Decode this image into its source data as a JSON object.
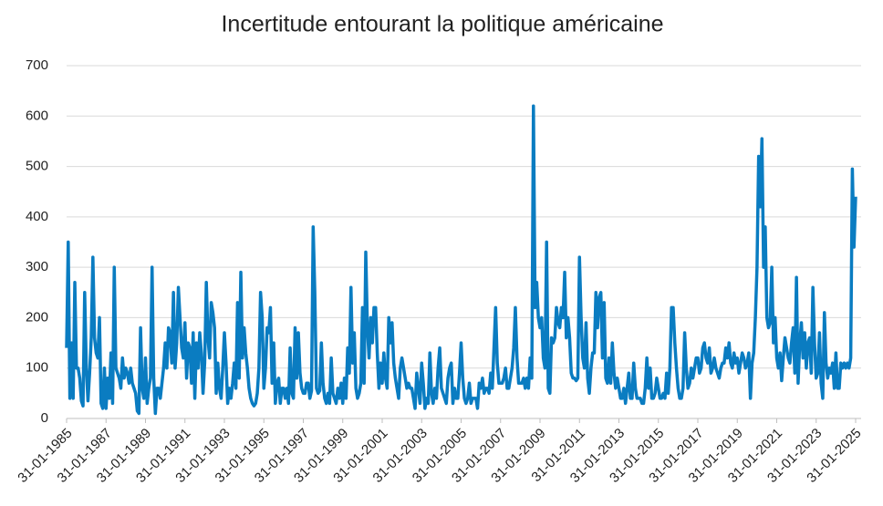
{
  "chart_data": {
    "type": "line",
    "title": "Incertitude entourant la politique américaine",
    "categories": [
      "31-01-1985",
      null,
      null,
      null,
      null,
      null,
      null,
      null,
      null,
      null,
      null,
      null,
      null,
      null,
      null,
      null,
      null,
      null,
      null,
      null,
      null,
      null,
      null,
      null,
      "31-01-1987",
      null,
      null,
      null,
      null,
      null,
      null,
      null,
      null,
      null,
      null,
      null,
      null,
      null,
      null,
      null,
      null,
      null,
      null,
      null,
      null,
      null,
      null,
      null,
      "31-01-1989",
      null,
      null,
      null,
      null,
      null,
      null,
      null,
      null,
      null,
      null,
      null,
      null,
      null,
      null,
      null,
      null,
      null,
      null,
      null,
      null,
      null,
      null,
      null,
      "31-01-1991",
      null,
      null,
      null,
      null,
      null,
      null,
      null,
      null,
      null,
      null,
      null,
      null,
      null,
      null,
      null,
      null,
      null,
      null,
      null,
      null,
      null,
      null,
      null,
      "31-01-1993",
      null,
      null,
      null,
      null,
      null,
      null,
      null,
      null,
      null,
      null,
      null,
      null,
      null,
      null,
      null,
      null,
      null,
      null,
      null,
      null,
      null,
      null,
      null,
      "31-01-1995",
      null,
      null,
      null,
      null,
      null,
      null,
      null,
      null,
      null,
      null,
      null,
      null,
      null,
      null,
      null,
      null,
      null,
      null,
      null,
      null,
      null,
      null,
      null,
      "31-01-1997",
      null,
      null,
      null,
      null,
      null,
      null,
      null,
      null,
      null,
      null,
      null,
      null,
      null,
      null,
      null,
      null,
      null,
      null,
      null,
      null,
      null,
      null,
      null,
      "31-01-1999",
      null,
      null,
      null,
      null,
      null,
      null,
      null,
      null,
      null,
      null,
      null,
      null,
      null,
      null,
      null,
      null,
      null,
      null,
      null,
      null,
      null,
      null,
      null,
      "31-01-2001",
      null,
      null,
      null,
      null,
      null,
      null,
      null,
      null,
      null,
      null,
      null,
      null,
      null,
      null,
      null,
      null,
      null,
      null,
      null,
      null,
      null,
      null,
      null,
      "31-01-2003",
      null,
      null,
      null,
      null,
      null,
      null,
      null,
      null,
      null,
      null,
      null,
      null,
      null,
      null,
      null,
      null,
      null,
      null,
      null,
      null,
      null,
      null,
      null,
      "31-01-2005",
      null,
      null,
      null,
      null,
      null,
      null,
      null,
      null,
      null,
      null,
      null,
      null,
      null,
      null,
      null,
      null,
      null,
      null,
      null,
      null,
      null,
      null,
      null,
      "31-01-2007",
      null,
      null,
      null,
      null,
      null,
      null,
      null,
      null,
      null,
      null,
      null,
      null,
      null,
      null,
      null,
      null,
      null,
      null,
      null,
      null,
      null,
      null,
      null,
      "31-01-2009",
      null,
      null,
      null,
      null,
      null,
      null,
      null,
      null,
      null,
      null,
      null,
      null,
      null,
      null,
      null,
      null,
      null,
      null,
      null,
      null,
      null,
      null,
      null,
      "31-01-2011",
      null,
      null,
      null,
      null,
      null,
      null,
      null,
      null,
      null,
      null,
      null,
      null,
      null,
      null,
      null,
      null,
      null,
      null,
      null,
      null,
      null,
      null,
      null,
      "31-01-2013",
      null,
      null,
      null,
      null,
      null,
      null,
      null,
      null,
      null,
      null,
      null,
      null,
      null,
      null,
      null,
      null,
      null,
      null,
      null,
      null,
      null,
      null,
      null,
      "31-01-2015",
      null,
      null,
      null,
      null,
      null,
      null,
      null,
      null,
      null,
      null,
      null,
      null,
      null,
      null,
      null,
      null,
      null,
      null,
      null,
      null,
      null,
      null,
      null,
      "31-01-2017",
      null,
      null,
      null,
      null,
      null,
      null,
      null,
      null,
      null,
      null,
      null,
      null,
      null,
      null,
      null,
      null,
      null,
      null,
      null,
      null,
      null,
      null,
      null,
      "31-01-2019",
      null,
      null,
      null,
      null,
      null,
      null,
      null,
      null,
      null,
      null,
      null,
      null,
      null,
      null,
      null,
      null,
      null,
      null,
      null,
      null,
      null,
      null,
      null,
      "31-01-2021",
      null,
      null,
      null,
      null,
      null,
      null,
      null,
      null,
      null,
      null,
      null,
      null,
      null,
      null,
      null,
      null,
      null,
      null,
      null,
      null,
      null,
      null,
      null,
      "31-01-2023",
      null,
      null,
      null,
      null,
      null,
      null,
      null,
      null,
      null,
      null,
      null,
      null,
      null,
      null,
      null,
      null,
      null,
      null,
      null,
      null,
      null,
      null,
      null,
      "31-01-2025"
    ],
    "series": [
      {
        "color": "#0a7cc1",
        "values": [
          140,
          350,
          40,
          150,
          40,
          270,
          100,
          100,
          80,
          35,
          25,
          250,
          100,
          35,
          90,
          160,
          320,
          160,
          130,
          120,
          200,
          30,
          20,
          100,
          20,
          80,
          40,
          130,
          30,
          300,
          100,
          90,
          80,
          60,
          120,
          80,
          100,
          90,
          70,
          100,
          70,
          60,
          50,
          15,
          10,
          180,
          60,
          40,
          120,
          30,
          60,
          80,
          300,
          80,
          10,
          60,
          60,
          40,
          70,
          100,
          150,
          100,
          180,
          170,
          110,
          250,
          100,
          150,
          260,
          200,
          140,
          120,
          190,
          80,
          150,
          140,
          70,
          170,
          40,
          150,
          100,
          170,
          130,
          50,
          110,
          270,
          160,
          120,
          230,
          210,
          180,
          50,
          110,
          60,
          40,
          100,
          170,
          110,
          30,
          60,
          40,
          70,
          110,
          60,
          230,
          80,
          290,
          120,
          180,
          130,
          100,
          60,
          40,
          30,
          25,
          30,
          50,
          100,
          250,
          200,
          60,
          100,
          180,
          170,
          220,
          70,
          150,
          30,
          70,
          80,
          30,
          60,
          60,
          40,
          60,
          30,
          140,
          50,
          40,
          180,
          80,
          170,
          90,
          60,
          50,
          50,
          70,
          70,
          40,
          55,
          380,
          250,
          60,
          50,
          55,
          150,
          70,
          40,
          30,
          50,
          30,
          120,
          50,
          40,
          30,
          60,
          40,
          70,
          30,
          80,
          40,
          140,
          90,
          260,
          110,
          170,
          60,
          40,
          50,
          70,
          220,
          70,
          330,
          180,
          120,
          200,
          150,
          220,
          220,
          130,
          60,
          110,
          70,
          130,
          80,
          60,
          200,
          150,
          190,
          110,
          80,
          60,
          40,
          100,
          120,
          100,
          80,
          60,
          70,
          60,
          60,
          40,
          20,
          90,
          60,
          30,
          110,
          70,
          20,
          40,
          30,
          130,
          50,
          30,
          60,
          40,
          100,
          140,
          60,
          50,
          40,
          30,
          80,
          100,
          110,
          30,
          60,
          40,
          40,
          90,
          150,
          80,
          40,
          30,
          40,
          70,
          30,
          40,
          40,
          40,
          20,
          70,
          60,
          80,
          50,
          60,
          60,
          50,
          90,
          60,
          140,
          220,
          110,
          70,
          70,
          70,
          80,
          100,
          60,
          60,
          80,
          100,
          140,
          220,
          120,
          70,
          70,
          70,
          80,
          60,
          80,
          60,
          120,
          80,
          620,
          220,
          270,
          200,
          180,
          200,
          120,
          100,
          350,
          60,
          50,
          160,
          150,
          160,
          220,
          190,
          180,
          220,
          200,
          290,
          160,
          200,
          160,
          90,
          80,
          80,
          75,
          80,
          320,
          200,
          120,
          100,
          190,
          80,
          50,
          100,
          130,
          130,
          250,
          180,
          240,
          250,
          120,
          230,
          80,
          70,
          120,
          70,
          150,
          90,
          60,
          80,
          60,
          40,
          40,
          60,
          30,
          60,
          90,
          40,
          40,
          110,
          60,
          40,
          40,
          40,
          30,
          30,
          60,
          120,
          60,
          100,
          40,
          40,
          50,
          80,
          60,
          40,
          40,
          50,
          40,
          90,
          50,
          100,
          220,
          220,
          150,
          100,
          60,
          40,
          40,
          60,
          170,
          100,
          60,
          70,
          100,
          80,
          100,
          120,
          120,
          90,
          100,
          140,
          150,
          120,
          110,
          140,
          90,
          100,
          120,
          100,
          90,
          80,
          100,
          110,
          110,
          140,
          120,
          150,
          110,
          100,
          130,
          110,
          120,
          90,
          110,
          130,
          120,
          100,
          110,
          130,
          40,
          110,
          130,
          200,
          300,
          520,
          420,
          555,
          300,
          380,
          200,
          180,
          190,
          300,
          150,
          200,
          120,
          100,
          130,
          75,
          120,
          160,
          140,
          120,
          110,
          150,
          180,
          90,
          280,
          70,
          150,
          190,
          120,
          170,
          100,
          150,
          160,
          90,
          260,
          150,
          80,
          90,
          170,
          70,
          40,
          210,
          110,
          80,
          100,
          90,
          110,
          60,
          130,
          60,
          60,
          110,
          100,
          110,
          100,
          110,
          100,
          120,
          495,
          340,
          440
        ]
      }
    ],
    "ylim": [
      0,
      700
    ],
    "yticks": [
      0,
      100,
      200,
      300,
      400,
      500,
      600,
      700
    ],
    "grid": true
  }
}
